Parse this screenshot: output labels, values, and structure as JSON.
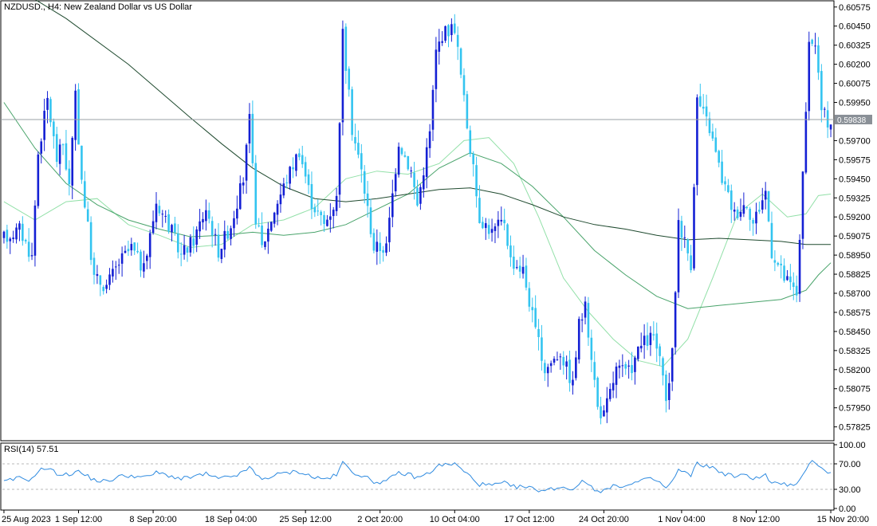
{
  "header": {
    "symbol_title": "NZDUSD., H4:  New Zealand Dollar vs US Dollar"
  },
  "colors": {
    "background": "#ffffff",
    "frame": "#000000",
    "bull": "#1420d4",
    "bear": "#33c4f0",
    "ma_fast": "#92e0a8",
    "ma_mid": "#48a36a",
    "ma_slow": "#1f4a2f",
    "rsi": "#2f8be0",
    "current_line": "#9aa0a6",
    "current_label_bg": "#8a9097",
    "level_dash": "#b8b8b8"
  },
  "current_price": {
    "value": 0.59838,
    "label": "0.59838"
  },
  "chart_data": [
    {
      "type": "candlestick",
      "name": "price",
      "ylim": [
        0.5775,
        0.606
      ],
      "y_ticks": [
        "0.60575",
        "0.60450",
        "0.60325",
        "0.60200",
        "0.60075",
        "0.59950",
        "0.59700",
        "0.59575",
        "0.59450",
        "0.59325",
        "0.59200",
        "0.59075",
        "0.58950",
        "0.58825",
        "0.58700",
        "0.58575",
        "0.58450",
        "0.58325",
        "0.58200",
        "0.58075",
        "0.57950",
        "0.57825"
      ],
      "x_labels": [
        "25 Aug 2023",
        "1 Sep 12:00",
        "8 Sep 20:00",
        "18 Sep 04:00",
        "25 Sep 12:00",
        "2 Oct 20:00",
        "10 Oct 04:00",
        "17 Oct 12:00",
        "24 Oct 20:00",
        "1 Nov 04:00",
        "8 Nov 12:00",
        "15 Nov 20:00"
      ],
      "path": [
        [
          0,
          0.5905
        ],
        [
          6,
          0.5912
        ],
        [
          10,
          0.5894
        ],
        [
          12,
          0.5962
        ],
        [
          15,
          0.5997
        ],
        [
          18,
          0.5958
        ],
        [
          20,
          0.5968
        ],
        [
          22,
          0.594
        ],
        [
          24,
          0.5998
        ],
        [
          26,
          0.5945
        ],
        [
          30,
          0.588
        ],
        [
          34,
          0.5875
        ],
        [
          38,
          0.589
        ],
        [
          42,
          0.59
        ],
        [
          46,
          0.5885
        ],
        [
          50,
          0.593
        ],
        [
          54,
          0.5915
        ],
        [
          58,
          0.5895
        ],
        [
          62,
          0.5905
        ],
        [
          66,
          0.5926
        ],
        [
          70,
          0.5898
        ],
        [
          74,
          0.5915
        ],
        [
          78,
          0.5945
        ],
        [
          80,
          0.5983
        ],
        [
          82,
          0.592
        ],
        [
          84,
          0.59
        ],
        [
          88,
          0.5925
        ],
        [
          92,
          0.5945
        ],
        [
          96,
          0.5964
        ],
        [
          100,
          0.593
        ],
        [
          104,
          0.5915
        ],
        [
          108,
          0.5932
        ],
        [
          110,
          0.604
        ],
        [
          113,
          0.5978
        ],
        [
          116,
          0.595
        ],
        [
          120,
          0.59
        ],
        [
          124,
          0.59
        ],
        [
          128,
          0.597
        ],
        [
          132,
          0.595
        ],
        [
          134,
          0.5928
        ],
        [
          138,
          0.5975
        ],
        [
          140,
          0.6028
        ],
        [
          142,
          0.604
        ],
        [
          146,
          0.6045
        ],
        [
          150,
          0.598
        ],
        [
          154,
          0.592
        ],
        [
          158,
          0.591
        ],
        [
          162,
          0.5918
        ],
        [
          164,
          0.5892
        ],
        [
          168,
          0.5885
        ],
        [
          172,
          0.5845
        ],
        [
          175,
          0.582
        ],
        [
          180,
          0.5832
        ],
        [
          184,
          0.581
        ],
        [
          186,
          0.585
        ],
        [
          188,
          0.586
        ],
        [
          190,
          0.583
        ],
        [
          192,
          0.5795
        ],
        [
          194,
          0.579
        ],
        [
          198,
          0.582
        ],
        [
          202,
          0.5818
        ],
        [
          206,
          0.5836
        ],
        [
          210,
          0.5842
        ],
        [
          212,
          0.5825
        ],
        [
          214,
          0.5798
        ],
        [
          216,
          0.583
        ],
        [
          218,
          0.5918
        ],
        [
          222,
          0.589
        ],
        [
          224,
          0.5997
        ],
        [
          228,
          0.5978
        ],
        [
          232,
          0.5945
        ],
        [
          236,
          0.5922
        ],
        [
          240,
          0.593
        ],
        [
          242,
          0.5916
        ],
        [
          246,
          0.5937
        ],
        [
          248,
          0.5898
        ],
        [
          252,
          0.588
        ],
        [
          256,
          0.587
        ],
        [
          258,
          0.5946
        ],
        [
          260,
          0.603
        ],
        [
          262,
          0.6035
        ],
        [
          264,
          0.599
        ],
        [
          266,
          0.5983
        ]
      ],
      "moving_averages": [
        {
          "period": 20,
          "points": [
            [
              0,
              0.593
            ],
            [
              10,
              0.5918
            ],
            [
              20,
              0.593
            ],
            [
              30,
              0.5932
            ],
            [
              40,
              0.5915
            ],
            [
              50,
              0.5908
            ],
            [
              60,
              0.59
            ],
            [
              70,
              0.5902
            ],
            [
              80,
              0.5915
            ],
            [
              90,
              0.5918
            ],
            [
              100,
              0.5926
            ],
            [
              110,
              0.5945
            ],
            [
              120,
              0.595
            ],
            [
              130,
              0.5948
            ],
            [
              140,
              0.5955
            ],
            [
              148,
              0.597
            ],
            [
              156,
              0.5972
            ],
            [
              164,
              0.5955
            ],
            [
              172,
              0.592
            ],
            [
              180,
              0.588
            ],
            [
              188,
              0.5858
            ],
            [
              196,
              0.584
            ],
            [
              204,
              0.5826
            ],
            [
              212,
              0.5822
            ],
            [
              220,
              0.584
            ],
            [
              228,
              0.588
            ],
            [
              236,
              0.5922
            ],
            [
              244,
              0.5935
            ],
            [
              252,
              0.592
            ],
            [
              258,
              0.5922
            ],
            [
              262,
              0.5934
            ],
            [
              266,
              0.5935
            ]
          ]
        },
        {
          "period": 50,
          "points": [
            [
              0,
              0.5995
            ],
            [
              10,
              0.5965
            ],
            [
              20,
              0.5942
            ],
            [
              30,
              0.5928
            ],
            [
              40,
              0.5918
            ],
            [
              50,
              0.5912
            ],
            [
              60,
              0.5907
            ],
            [
              70,
              0.5908
            ],
            [
              80,
              0.591
            ],
            [
              90,
              0.5908
            ],
            [
              100,
              0.591
            ],
            [
              110,
              0.5915
            ],
            [
              120,
              0.5925
            ],
            [
              130,
              0.5935
            ],
            [
              140,
              0.5952
            ],
            [
              150,
              0.5962
            ],
            [
              160,
              0.5955
            ],
            [
              170,
              0.594
            ],
            [
              180,
              0.592
            ],
            [
              190,
              0.5898
            ],
            [
              200,
              0.5882
            ],
            [
              210,
              0.5868
            ],
            [
              220,
              0.586
            ],
            [
              230,
              0.5862
            ],
            [
              240,
              0.5864
            ],
            [
              250,
              0.5866
            ],
            [
              258,
              0.5872
            ],
            [
              262,
              0.5882
            ],
            [
              266,
              0.589
            ]
          ]
        },
        {
          "period": 200,
          "points": [
            [
              0,
              0.6075
            ],
            [
              20,
              0.605
            ],
            [
              40,
              0.602
            ],
            [
              60,
              0.5985
            ],
            [
              70,
              0.5968
            ],
            [
              80,
              0.5952
            ],
            [
              90,
              0.594
            ],
            [
              100,
              0.5932
            ],
            [
              110,
              0.593
            ],
            [
              120,
              0.5932
            ],
            [
              130,
              0.5935
            ],
            [
              140,
              0.5938
            ],
            [
              150,
              0.5939
            ],
            [
              160,
              0.5935
            ],
            [
              170,
              0.5928
            ],
            [
              180,
              0.592
            ],
            [
              190,
              0.5915
            ],
            [
              200,
              0.5912
            ],
            [
              210,
              0.5908
            ],
            [
              220,
              0.5905
            ],
            [
              230,
              0.5906
            ],
            [
              240,
              0.5905
            ],
            [
              250,
              0.5904
            ],
            [
              258,
              0.5902
            ],
            [
              266,
              0.5902
            ]
          ]
        }
      ]
    },
    {
      "type": "line",
      "name": "RSI(14)",
      "label": "RSI(14) 57.51",
      "value": 57.51,
      "ylim": [
        0,
        100
      ],
      "y_ticks": [
        "100.00",
        "70.00",
        "30.00",
        "0.00"
      ],
      "levels": [
        70,
        30
      ],
      "points": [
        [
          0,
          40
        ],
        [
          6,
          48
        ],
        [
          10,
          45
        ],
        [
          12,
          60
        ],
        [
          15,
          63
        ],
        [
          18,
          55
        ],
        [
          22,
          52
        ],
        [
          24,
          60
        ],
        [
          26,
          55
        ],
        [
          30,
          45
        ],
        [
          34,
          42
        ],
        [
          38,
          50
        ],
        [
          42,
          52
        ],
        [
          46,
          48
        ],
        [
          50,
          56
        ],
        [
          54,
          52
        ],
        [
          58,
          46
        ],
        [
          62,
          50
        ],
        [
          66,
          54
        ],
        [
          70,
          46
        ],
        [
          74,
          50
        ],
        [
          78,
          56
        ],
        [
          80,
          66
        ],
        [
          82,
          52
        ],
        [
          84,
          46
        ],
        [
          88,
          52
        ],
        [
          92,
          56
        ],
        [
          96,
          58
        ],
        [
          100,
          50
        ],
        [
          104,
          46
        ],
        [
          108,
          52
        ],
        [
          110,
          72
        ],
        [
          113,
          58
        ],
        [
          116,
          52
        ],
        [
          120,
          42
        ],
        [
          124,
          42
        ],
        [
          128,
          56
        ],
        [
          132,
          52
        ],
        [
          134,
          48
        ],
        [
          138,
          56
        ],
        [
          140,
          66
        ],
        [
          142,
          68
        ],
        [
          146,
          70
        ],
        [
          150,
          54
        ],
        [
          154,
          38
        ],
        [
          158,
          36
        ],
        [
          162,
          40
        ],
        [
          164,
          34
        ],
        [
          168,
          34
        ],
        [
          172,
          30
        ],
        [
          175,
          28
        ],
        [
          180,
          34
        ],
        [
          184,
          30
        ],
        [
          186,
          40
        ],
        [
          188,
          42
        ],
        [
          190,
          34
        ],
        [
          192,
          28
        ],
        [
          194,
          28
        ],
        [
          198,
          36
        ],
        [
          202,
          36
        ],
        [
          206,
          44
        ],
        [
          210,
          46
        ],
        [
          212,
          40
        ],
        [
          214,
          32
        ],
        [
          216,
          42
        ],
        [
          218,
          60
        ],
        [
          222,
          52
        ],
        [
          224,
          70
        ],
        [
          228,
          66
        ],
        [
          232,
          56
        ],
        [
          236,
          50
        ],
        [
          240,
          52
        ],
        [
          242,
          48
        ],
        [
          246,
          52
        ],
        [
          248,
          40
        ],
        [
          252,
          38
        ],
        [
          256,
          36
        ],
        [
          258,
          50
        ],
        [
          260,
          72
        ],
        [
          262,
          74
        ],
        [
          264,
          64
        ],
        [
          266,
          57.51
        ]
      ]
    }
  ]
}
